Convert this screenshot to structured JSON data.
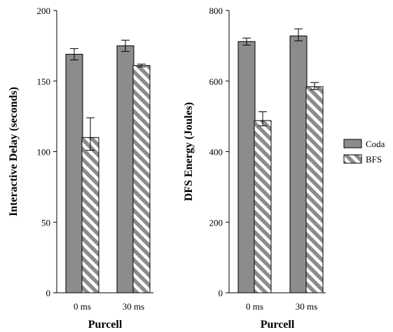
{
  "chart_data": [
    {
      "type": "bar",
      "categories": [
        "0 ms",
        "30 ms"
      ],
      "xlabel": "Purcell",
      "ylabel": "Interactive Delay (seconds)",
      "ylim": [
        0,
        200
      ],
      "yticks": [
        "0",
        "50",
        "100",
        "150",
        "200"
      ],
      "series": [
        {
          "name": "Coda",
          "values": [
            169,
            175
          ],
          "err_low": [
            4,
            4
          ],
          "err_high": [
            4,
            4
          ]
        },
        {
          "name": "BFS",
          "values": [
            110,
            161
          ],
          "err_low": [
            9,
            1
          ],
          "err_high": [
            14,
            1
          ]
        }
      ]
    },
    {
      "type": "bar",
      "categories": [
        "0 ms",
        "30 ms"
      ],
      "xlabel": "Purcell",
      "ylabel": "DFS Energy (Joules)",
      "ylim": [
        0,
        800
      ],
      "yticks": [
        "0",
        "200",
        "400",
        "600",
        "800"
      ],
      "series": [
        {
          "name": "Coda",
          "values": [
            712,
            728
          ],
          "err_low": [
            10,
            14
          ],
          "err_high": [
            10,
            20
          ]
        },
        {
          "name": "BFS",
          "values": [
            488,
            584
          ],
          "err_low": [
            15,
            8
          ],
          "err_high": [
            25,
            12
          ]
        }
      ]
    }
  ],
  "legend": {
    "position": "right",
    "items": [
      {
        "label": "Coda",
        "fill": "solid-gray"
      },
      {
        "label": "BFS",
        "fill": "diagonal-stripes"
      }
    ]
  },
  "colors": {
    "coda": "#8c8c8c",
    "bfs_stripe": "#8c8c8c",
    "bfs_bg": "#ffffff",
    "outline": "#000000"
  }
}
